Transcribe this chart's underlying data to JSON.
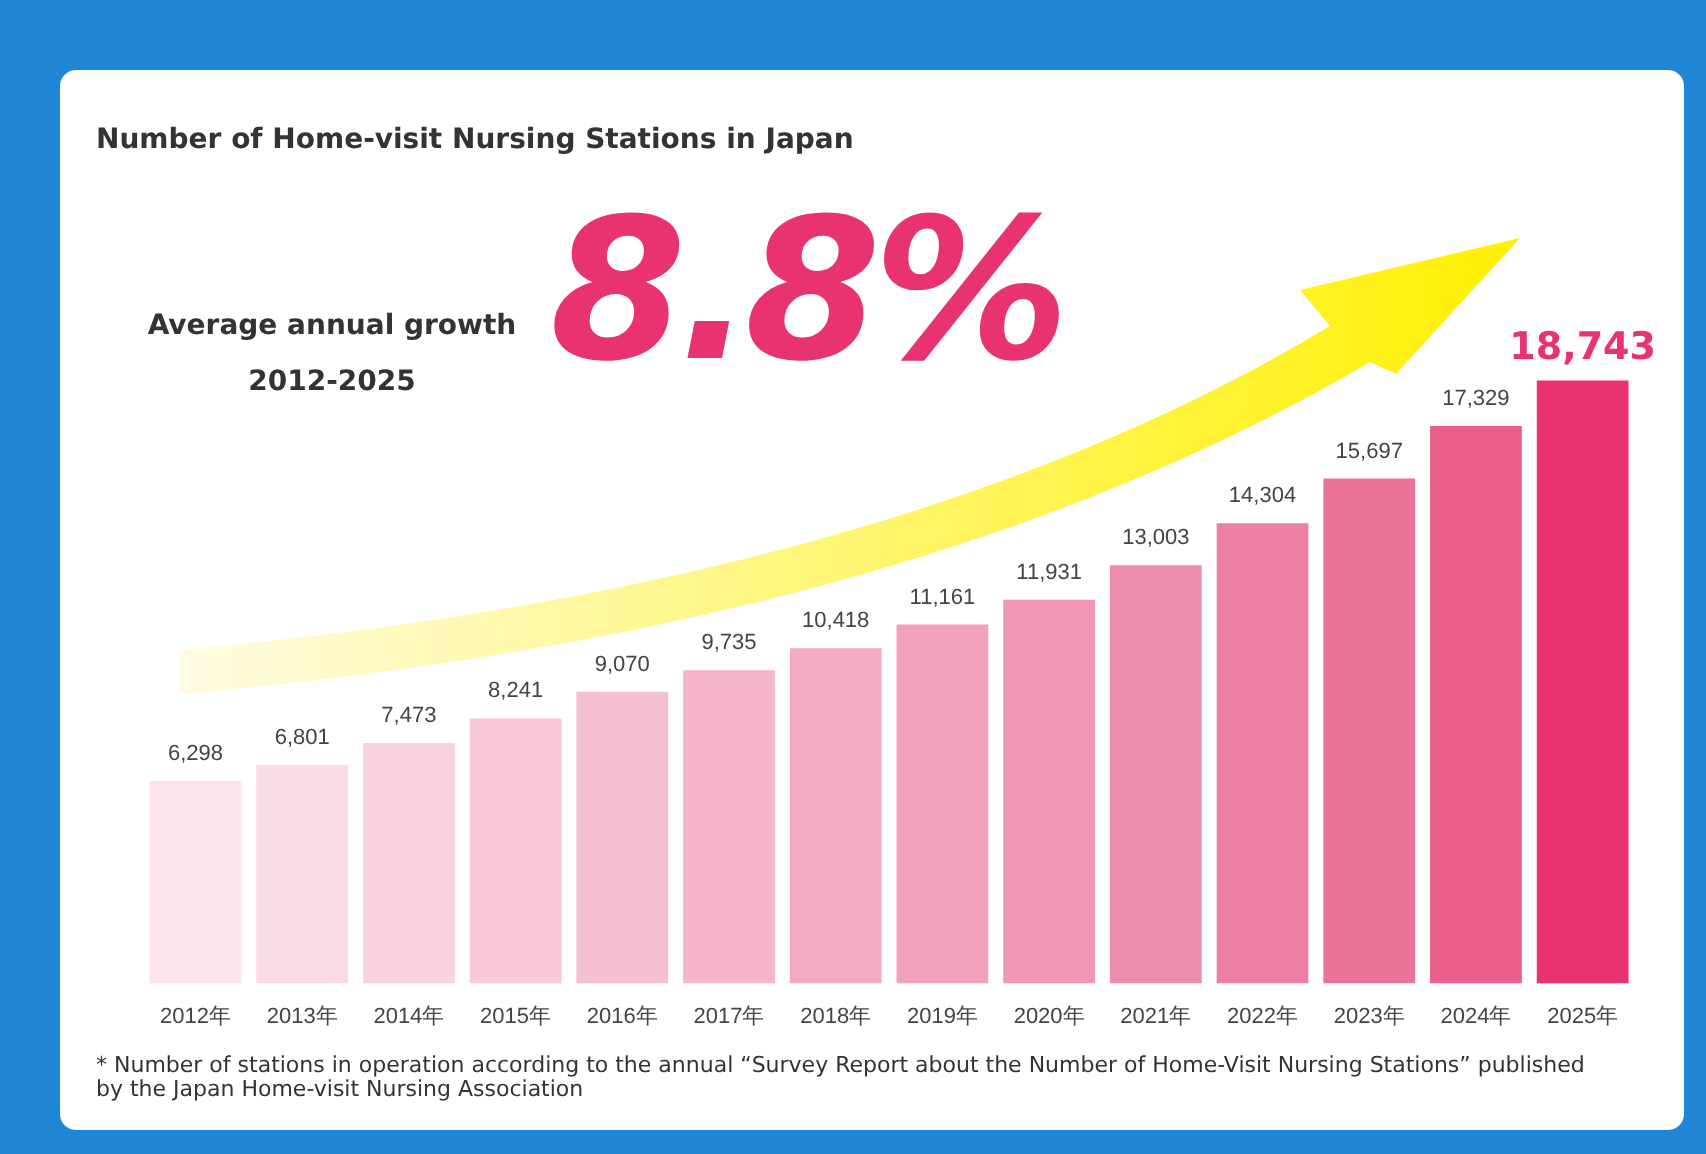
{
  "chart_data": {
    "type": "bar",
    "title": "Number of Home-visit Nursing Stations in Japan",
    "categories": [
      "2012年",
      "2013年",
      "2014年",
      "2015年",
      "2016年",
      "2017年",
      "2018年",
      "2019年",
      "2020年",
      "2021年",
      "2022年",
      "2023年",
      "2024年",
      "2025年"
    ],
    "values": [
      6298,
      6801,
      7473,
      8241,
      9070,
      9735,
      10418,
      11161,
      11931,
      13003,
      14304,
      15697,
      17329,
      18743
    ],
    "value_labels": [
      "6,298",
      "6,801",
      "7,473",
      "8,241",
      "9,070",
      "9,735",
      "10,418",
      "11,161",
      "11,931",
      "13,003",
      "14,304",
      "15,697",
      "17,329",
      "18,743"
    ],
    "colors": [
      "#fde4ec",
      "#fbdbe6",
      "#f9d2df",
      "#f8c8d8",
      "#f6bfd1",
      "#f5b5ca",
      "#f3abc2",
      "#f2a1bb",
      "#f097b3",
      "#ee8cab",
      "#ed80a2",
      "#eb7397",
      "#ea5f8a",
      "#e8336e"
    ],
    "annotations": [
      "Average annual growth",
      "2012-2025",
      "8.8%",
      "* Number of stations in operation according to the annual “Survey Report about the Number of Home-Visit Nursing Stations” published by the Japan Home-visit Nursing Association"
    ],
    "grid": false
  }
}
